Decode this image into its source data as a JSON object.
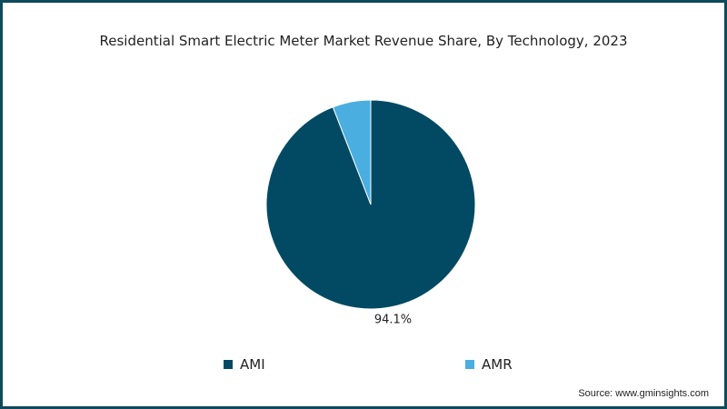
{
  "chart_data": {
    "type": "pie",
    "title": "Residential Smart Electric Meter Market Revenue Share, By Technology, 2023",
    "slices": [
      {
        "label": "AMI",
        "value": 94.1,
        "color": "#024a63",
        "data_label": "94.1%"
      },
      {
        "label": "AMR",
        "value": 5.9,
        "color": "#4aaee0",
        "data_label": ""
      }
    ],
    "legend_position": "bottom",
    "source": "Source: www.gminsights.com"
  }
}
